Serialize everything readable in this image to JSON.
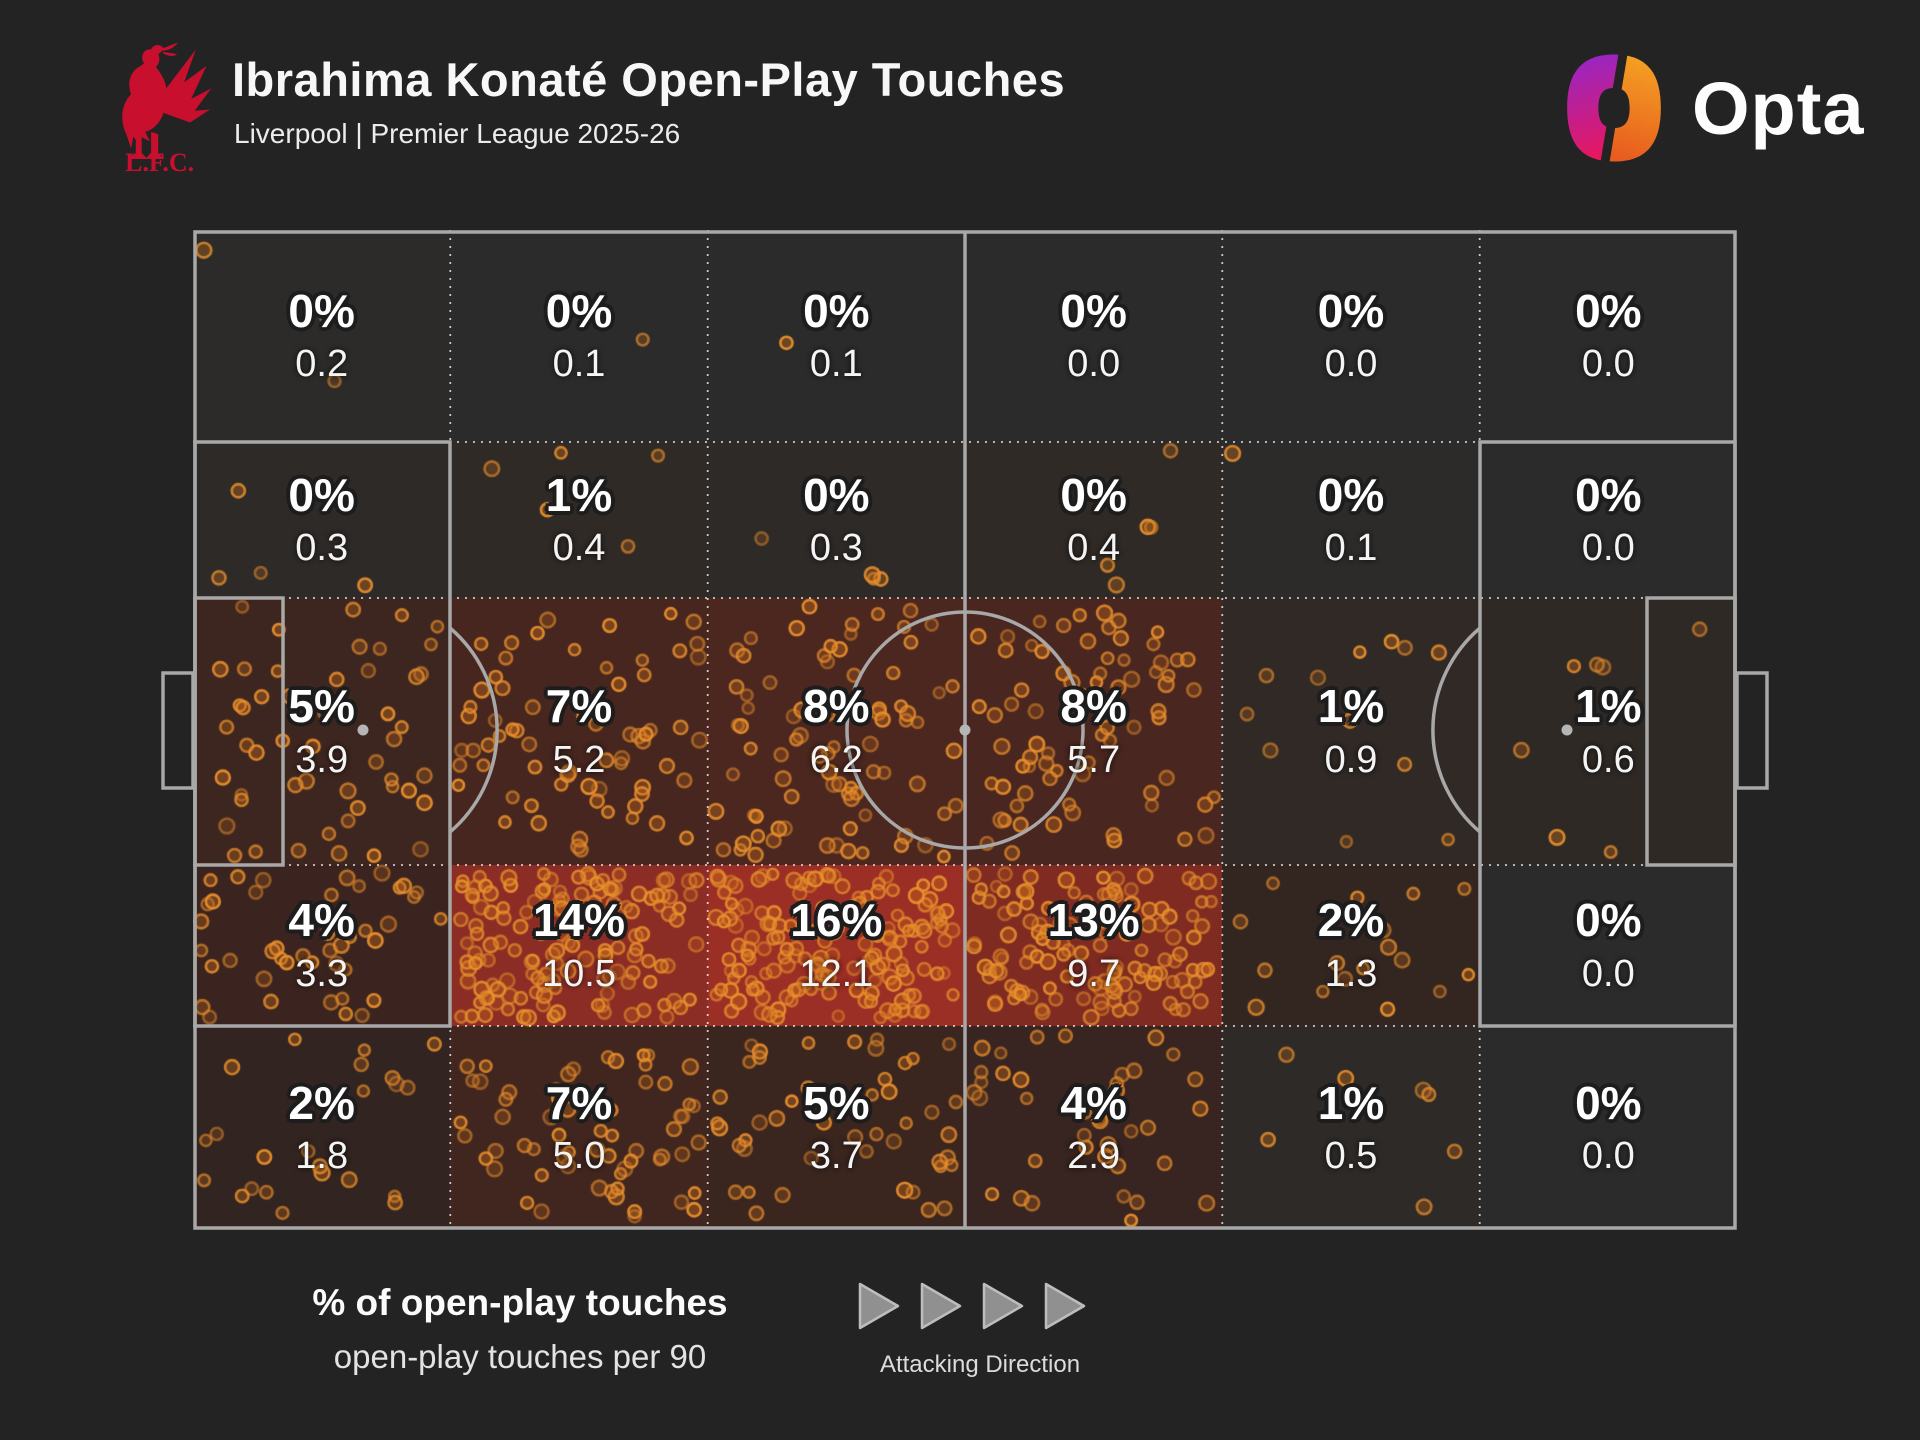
{
  "header": {
    "title": "Ibrahima Konaté Open-Play Touches",
    "subtitle": "Liverpool | Premier League 2025-26",
    "club_badge_text": "L.F.C.",
    "brand_name": "Opta"
  },
  "legend": {
    "line1": "% of open-play touches",
    "line2": "open-play touches per 90",
    "attacking_direction_label": "Attacking Direction"
  },
  "colors": {
    "page_background": "#232324",
    "pitch_background": "#2b2b2b",
    "pitch_line": "#a8a8a8",
    "zone_divider": "rgba(255,255,255,0.75)",
    "club_red": "#c8102e",
    "opta_magenta_top": "#9327c9",
    "opta_magenta_bottom": "#e8175d",
    "opta_orange_top": "#f5a623",
    "opta_orange_bottom": "#e85d1f",
    "dot_ring": "#e9912f",
    "dot_fill": "#c56b1c",
    "label_text": "#ffffff",
    "arrow_gray": "#909090"
  },
  "chart_data": {
    "type": "heatmap",
    "title": "Ibrahima Konaté Open-Play Touches",
    "subtitle": "Liverpool | Premier League 2025-26",
    "attacking_direction": "left-to-right",
    "grid": {
      "columns": 6,
      "rows": 5
    },
    "row_boundaries_fraction": [
      0,
      0.212,
      0.368,
      0.635,
      0.796,
      1
    ],
    "value_primary": "percent of open-play touches",
    "value_secondary": "open-play touches per 90",
    "zones": [
      [
        {
          "pct_label": "0%",
          "pct": 0,
          "per90": 0.2,
          "per90_label": "0.2",
          "heat": "#2c2b2a"
        },
        {
          "pct_label": "0%",
          "pct": 0,
          "per90": 0.1,
          "per90_label": "0.1",
          "heat": "#2b2b2b"
        },
        {
          "pct_label": "0%",
          "pct": 0,
          "per90": 0.1,
          "per90_label": "0.1",
          "heat": "#2b2b2b"
        },
        {
          "pct_label": "0%",
          "pct": 0,
          "per90": 0.0,
          "per90_label": "0.0",
          "heat": "#2b2b2b"
        },
        {
          "pct_label": "0%",
          "pct": 0,
          "per90": 0.0,
          "per90_label": "0.0",
          "heat": "#2b2b2b"
        },
        {
          "pct_label": "0%",
          "pct": 0,
          "per90": 0.0,
          "per90_label": "0.0",
          "heat": "#2b2b2b"
        }
      ],
      [
        {
          "pct_label": "0%",
          "pct": 0,
          "per90": 0.3,
          "per90_label": "0.3",
          "heat": "#2e2a28"
        },
        {
          "pct_label": "1%",
          "pct": 1,
          "per90": 0.4,
          "per90_label": "0.4",
          "heat": "#302a26"
        },
        {
          "pct_label": "0%",
          "pct": 0,
          "per90": 0.3,
          "per90_label": "0.3",
          "heat": "#2e2a28"
        },
        {
          "pct_label": "0%",
          "pct": 0,
          "per90": 0.4,
          "per90_label": "0.4",
          "heat": "#302a26"
        },
        {
          "pct_label": "0%",
          "pct": 0,
          "per90": 0.1,
          "per90_label": "0.1",
          "heat": "#2c2b2a"
        },
        {
          "pct_label": "0%",
          "pct": 0,
          "per90": 0.0,
          "per90_label": "0.0",
          "heat": "#2b2b2b"
        }
      ],
      [
        {
          "pct_label": "5%",
          "pct": 5,
          "per90": 3.9,
          "per90_label": "3.9",
          "heat": "#3e2620"
        },
        {
          "pct_label": "7%",
          "pct": 7,
          "per90": 5.2,
          "per90_label": "5.2",
          "heat": "#46261f"
        },
        {
          "pct_label": "8%",
          "pct": 8,
          "per90": 6.2,
          "per90_label": "6.2",
          "heat": "#4b2720"
        },
        {
          "pct_label": "8%",
          "pct": 8,
          "per90": 5.7,
          "per90_label": "5.7",
          "heat": "#49261f"
        },
        {
          "pct_label": "1%",
          "pct": 1,
          "per90": 0.9,
          "per90_label": "0.9",
          "heat": "#302925"
        },
        {
          "pct_label": "1%",
          "pct": 1,
          "per90": 0.6,
          "per90_label": "0.6",
          "heat": "#2f2925"
        }
      ],
      [
        {
          "pct_label": "4%",
          "pct": 4,
          "per90": 3.3,
          "per90_label": "3.3",
          "heat": "#3b241f"
        },
        {
          "pct_label": "14%",
          "pct": 14,
          "per90": 10.5,
          "per90_label": "10.5",
          "heat": "#8c2d25"
        },
        {
          "pct_label": "16%",
          "pct": 16,
          "per90": 12.1,
          "per90_label": "12.1",
          "heat": "#9b2e25"
        },
        {
          "pct_label": "13%",
          "pct": 13,
          "per90": 9.7,
          "per90_label": "9.7",
          "heat": "#7f2b22"
        },
        {
          "pct_label": "2%",
          "pct": 2,
          "per90": 1.3,
          "per90_label": "1.3",
          "heat": "#332621"
        },
        {
          "pct_label": "0%",
          "pct": 0,
          "per90": 0.0,
          "per90_label": "0.0",
          "heat": "#2b2b2b"
        }
      ],
      [
        {
          "pct_label": "2%",
          "pct": 2,
          "per90": 1.8,
          "per90_label": "1.8",
          "heat": "#322420"
        },
        {
          "pct_label": "7%",
          "pct": 7,
          "per90": 5.0,
          "per90_label": "5.0",
          "heat": "#41261f"
        },
        {
          "pct_label": "5%",
          "pct": 5,
          "per90": 3.7,
          "per90_label": "3.7",
          "heat": "#3a251f"
        },
        {
          "pct_label": "4%",
          "pct": 4,
          "per90": 2.9,
          "per90_label": "2.9",
          "heat": "#382420"
        },
        {
          "pct_label": "1%",
          "pct": 1,
          "per90": 0.5,
          "per90_label": "0.5",
          "heat": "#2d2a27"
        },
        {
          "pct_label": "0%",
          "pct": 0,
          "per90": 0.0,
          "per90_label": "0.0",
          "heat": "#2b2b2b"
        }
      ]
    ],
    "dots": {
      "per_per90_count": 13,
      "seed": 7,
      "radius_min": 5.5,
      "radius_max": 7.5
    }
  }
}
